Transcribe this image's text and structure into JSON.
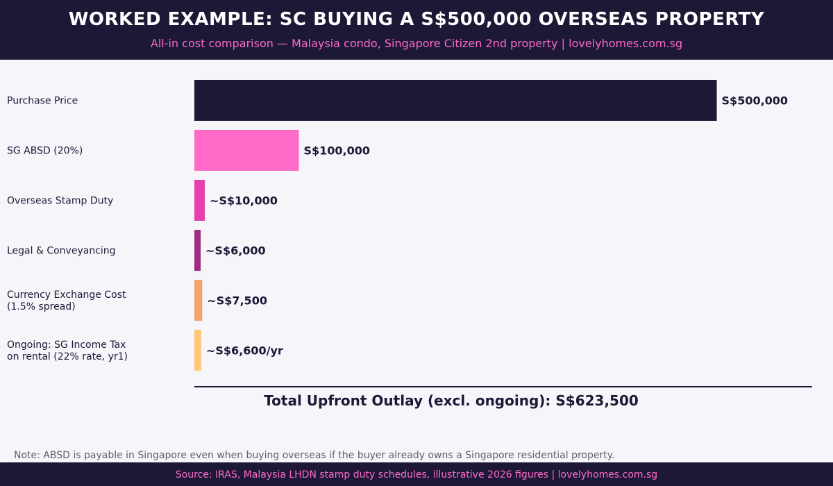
{
  "header": {
    "title": "WORKED EXAMPLE: SC BUYING A S$500,000 OVERSEAS PROPERTY",
    "subtitle": "All-in cost comparison — Malaysia condo, Singapore Citizen 2nd property  |  lovelyhomes.com.sg"
  },
  "chart_data": {
    "type": "bar",
    "orientation": "horizontal",
    "title": "WORKED EXAMPLE: SC BUYING A S$500,000 OVERSEAS PROPERTY",
    "subtitle": "All-in cost comparison — Malaysia condo, Singapore Citizen 2nd property  |  lovelyhomes.com.sg",
    "categories": [
      [
        "Purchase Price"
      ],
      [
        "SG ABSD (20%)"
      ],
      [
        "Overseas Stamp Duty"
      ],
      [
        "Legal & Conveyancing"
      ],
      [
        "Currency Exchange Cost",
        "(1.5% spread)"
      ],
      [
        "Ongoing: SG Income Tax",
        "on rental (22% rate, yr1)"
      ]
    ],
    "values": [
      500000,
      100000,
      10000,
      6000,
      7500,
      6600
    ],
    "value_labels": [
      "S$500,000",
      "S$100,000",
      "~S$10,000",
      "~S$6,000",
      "~S$7,500",
      "~S$6,600/yr"
    ],
    "colors": [
      "#1c1836",
      "#ff6ac8",
      "#e63fae",
      "#a02c80",
      "#f4a26c",
      "#ffc878"
    ],
    "xlim": [
      0,
      592000
    ],
    "grid": false,
    "legend": "none",
    "total_label": "Total Upfront Outlay (excl. ongoing):  S$623,500"
  },
  "note": "Note: ABSD is payable in Singapore even when buying overseas if the buyer already owns a Singapore residential property.",
  "footer": "Source: IRAS, Malaysia LHDN stamp duty schedules, illustrative 2026 figures  |  lovelyhomes.com.sg"
}
